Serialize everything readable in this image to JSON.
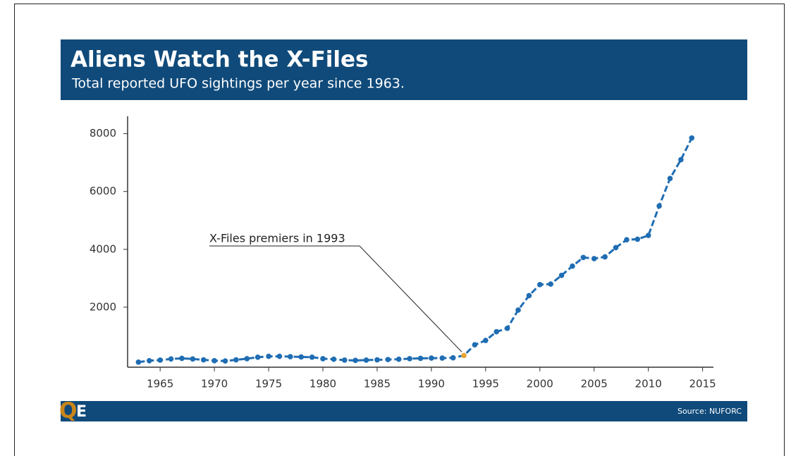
{
  "chart_data": {
    "type": "line",
    "title": "Aliens Watch the X-Files",
    "subtitle": "Total reported UFO sightings per year since 1963.",
    "annotation": "X-Files premiers in 1993",
    "source": "Source: NUFORC",
    "logo": [
      "Q",
      "E"
    ],
    "x": [
      1963,
      1964,
      1965,
      1966,
      1967,
      1968,
      1969,
      1970,
      1971,
      1972,
      1973,
      1974,
      1975,
      1976,
      1977,
      1978,
      1979,
      1980,
      1981,
      1982,
      1983,
      1984,
      1985,
      1986,
      1987,
      1988,
      1989,
      1990,
      1991,
      1992,
      1993,
      1994,
      1995,
      1996,
      1997,
      1998,
      1999,
      2000,
      2001,
      2002,
      2003,
      2004,
      2005,
      2006,
      2007,
      2008,
      2009,
      2010,
      2011,
      2012,
      2013,
      2014
    ],
    "values": [
      100,
      150,
      170,
      210,
      230,
      210,
      180,
      150,
      140,
      180,
      220,
      270,
      300,
      300,
      290,
      280,
      270,
      220,
      200,
      170,
      160,
      170,
      180,
      190,
      200,
      220,
      230,
      240,
      240,
      250,
      330,
      700,
      850,
      1150,
      1270,
      1900,
      2400,
      2780,
      2800,
      3100,
      3420,
      3720,
      3680,
      3740,
      4060,
      4330,
      4350,
      4480,
      5500,
      6450,
      7100,
      7850
    ],
    "color": "#1f6db3",
    "highlight_x": 1993,
    "highlight_color": "#e8a534",
    "xlim": [
      1962,
      2016
    ],
    "xticks": [
      1965,
      1970,
      1975,
      1980,
      1985,
      1990,
      1995,
      2000,
      2005,
      2010,
      2015
    ],
    "ylim": [
      -75,
      8600
    ],
    "yticks": [
      2000,
      4000,
      6000,
      8000
    ]
  }
}
